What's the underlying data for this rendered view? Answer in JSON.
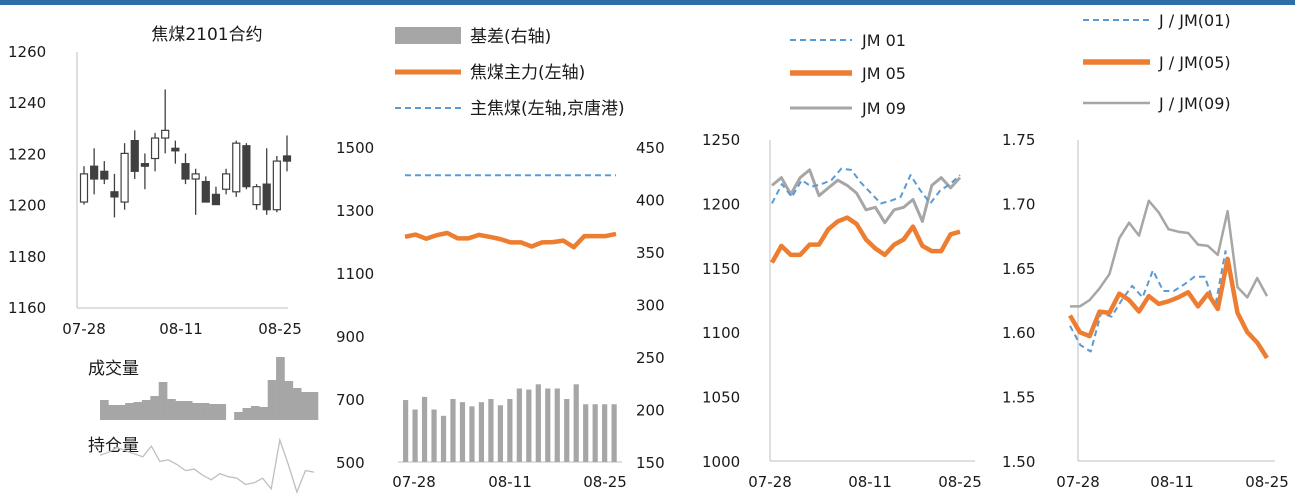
{
  "header_bar_color": "#2e6ea6",
  "colors": {
    "orange": "#ed7d31",
    "blue_dash": "#5b9bd5",
    "gray": "#a6a6a6",
    "candle": "#404040",
    "axis_text": "#1a1a1a"
  },
  "chart_data": [
    {
      "id": "panel1_candles",
      "type": "candlestick",
      "title": "焦煤2101合约",
      "ylim": [
        1160,
        1260
      ],
      "y_ticks": [
        "1260",
        "1240",
        "1220",
        "1200",
        "1180",
        "1160"
      ],
      "x_ticks": [
        "07-28",
        "08-11",
        "08-25"
      ],
      "candles": [
        {
          "o": 1201,
          "h": 1215,
          "l": 1200,
          "c": 1212
        },
        {
          "o": 1215,
          "h": 1222,
          "l": 1204,
          "c": 1210
        },
        {
          "o": 1213,
          "h": 1217,
          "l": 1208,
          "c": 1210
        },
        {
          "o": 1205,
          "h": 1212,
          "l": 1195,
          "c": 1203
        },
        {
          "o": 1201,
          "h": 1224,
          "l": 1198,
          "c": 1220
        },
        {
          "o": 1225,
          "h": 1229,
          "l": 1210,
          "c": 1213
        },
        {
          "o": 1216,
          "h": 1220,
          "l": 1206,
          "c": 1215
        },
        {
          "o": 1218,
          "h": 1228,
          "l": 1213,
          "c": 1226
        },
        {
          "o": 1226,
          "h": 1245,
          "l": 1220,
          "c": 1229
        },
        {
          "o": 1222,
          "h": 1225,
          "l": 1216,
          "c": 1221
        },
        {
          "o": 1216,
          "h": 1220,
          "l": 1208,
          "c": 1210
        },
        {
          "o": 1210,
          "h": 1214,
          "l": 1196,
          "c": 1212
        },
        {
          "o": 1209,
          "h": 1211,
          "l": 1201,
          "c": 1201
        },
        {
          "o": 1204,
          "h": 1207,
          "l": 1200,
          "c": 1200
        },
        {
          "o": 1206,
          "h": 1214,
          "l": 1204,
          "c": 1212
        },
        {
          "o": 1205,
          "h": 1225,
          "l": 1203,
          "c": 1224
        },
        {
          "o": 1223,
          "h": 1224,
          "l": 1206,
          "c": 1207
        },
        {
          "o": 1200,
          "h": 1208,
          "l": 1198,
          "c": 1207
        },
        {
          "o": 1208,
          "h": 1222,
          "l": 1196,
          "c": 1198
        },
        {
          "o": 1198,
          "h": 1219,
          "l": 1197,
          "c": 1217
        },
        {
          "o": 1219,
          "h": 1227,
          "l": 1213,
          "c": 1217
        }
      ]
    },
    {
      "id": "panel1_volume",
      "type": "bar",
      "label": "成交量",
      "values": [
        20,
        15,
        15,
        17,
        18,
        20,
        24,
        38,
        21,
        19,
        19,
        17,
        17,
        16,
        16,
        0,
        8,
        12,
        14,
        13,
        40,
        63,
        39,
        32,
        28,
        28
      ]
    },
    {
      "id": "panel1_oi",
      "type": "line",
      "label": "持仓量",
      "values": [
        28,
        30,
        33,
        31,
        29,
        27,
        34,
        24,
        25,
        22,
        18,
        19,
        15,
        12,
        16,
        14,
        13,
        9,
        10,
        13,
        6,
        38,
        22,
        4,
        18,
        17
      ]
    },
    {
      "id": "panel2_basis",
      "type": "bar+line",
      "legend": [
        "基差(右轴)",
        "焦煤主力(左轴)",
        "主焦煤(左轴,京唐港)"
      ],
      "left_ylim": [
        500,
        1500
      ],
      "left_ticks": [
        "1500",
        "1300",
        "1100",
        "900",
        "700",
        "500"
      ],
      "right_ylim": [
        150,
        450
      ],
      "right_ticks": [
        "450",
        "400",
        "350",
        "300",
        "250",
        "200",
        "150"
      ],
      "x_ticks": [
        "07-28",
        "08-11",
        "08-25"
      ],
      "basis_right": [
        209,
        200,
        212,
        200,
        194,
        210,
        207,
        203,
        207,
        210,
        204,
        210,
        220,
        219,
        224,
        220,
        220,
        210,
        224,
        205,
        205,
        205,
        205
      ],
      "main_contract_left": [
        1215,
        1222,
        1209,
        1220,
        1227,
        1210,
        1210,
        1221,
        1215,
        1208,
        1197,
        1197,
        1184,
        1197,
        1198,
        1203,
        1182,
        1217,
        1217,
        1217,
        1224
      ],
      "spot_left": [
        1410,
        1410,
        1410,
        1410,
        1410,
        1410,
        1410,
        1410,
        1410,
        1410,
        1410,
        1410,
        1410,
        1410,
        1410,
        1410,
        1410,
        1410,
        1410,
        1410,
        1410
      ]
    },
    {
      "id": "panel3_jm",
      "type": "line",
      "legend": [
        "JM 01",
        "JM 05",
        "JM 09"
      ],
      "ylim": [
        1000,
        1250
      ],
      "y_ticks": [
        "1250",
        "1200",
        "1150",
        "1100",
        "1050",
        "1000"
      ],
      "x_ticks": [
        "07-28",
        "08-11",
        "08-25"
      ],
      "series": [
        {
          "name": "JM 01",
          "values": [
            1200,
            1215,
            1205,
            1218,
            1213,
            1215,
            1218,
            1227,
            1226,
            1216,
            1208,
            1200,
            1202,
            1205,
            1222,
            1210,
            1200,
            1210,
            1215,
            1222
          ]
        },
        {
          "name": "JM 05",
          "values": [
            1154,
            1167,
            1160,
            1160,
            1168,
            1168,
            1180,
            1186,
            1189,
            1184,
            1172,
            1165,
            1160,
            1168,
            1172,
            1182,
            1167,
            1163,
            1163,
            1176,
            1178
          ]
        },
        {
          "name": "JM 09",
          "values": [
            1214,
            1220,
            1207,
            1220,
            1226,
            1206,
            1212,
            1218,
            1214,
            1208,
            1195,
            1197,
            1185,
            1195,
            1197,
            1203,
            1186,
            1214,
            1220,
            1212,
            1220
          ]
        }
      ]
    },
    {
      "id": "panel4_ratio",
      "type": "line",
      "legend": [
        "J / JM(01)",
        "J / JM(05)",
        "J / JM(09)"
      ],
      "ylim": [
        1.5,
        1.75
      ],
      "y_ticks": [
        "1.75",
        "1.70",
        "1.65",
        "1.60",
        "1.55",
        "1.50"
      ],
      "x_ticks": [
        "07-28",
        "08-11",
        "08-25"
      ],
      "series": [
        {
          "name": "J / JM(01)",
          "values": [
            1.605,
            1.59,
            1.585,
            1.615,
            1.612,
            1.625,
            1.636,
            1.627,
            1.648,
            1.632,
            1.632,
            1.637,
            1.643,
            1.643,
            1.62,
            1.663,
            1.62,
            1.603,
            1.593,
            1.58
          ]
        },
        {
          "name": "J / JM(05)",
          "values": [
            1.613,
            1.6,
            1.597,
            1.616,
            1.615,
            1.63,
            1.625,
            1.616,
            1.628,
            1.622,
            1.624,
            1.627,
            1.631,
            1.62,
            1.63,
            1.618,
            1.657,
            1.615,
            1.6,
            1.592,
            1.58
          ]
        },
        {
          "name": "J / JM(09)",
          "values": [
            1.62,
            1.62,
            1.625,
            1.634,
            1.645,
            1.673,
            1.685,
            1.675,
            1.702,
            1.693,
            1.68,
            1.678,
            1.677,
            1.668,
            1.667,
            1.66,
            1.694,
            1.635,
            1.627,
            1.642,
            1.628
          ]
        }
      ]
    }
  ]
}
